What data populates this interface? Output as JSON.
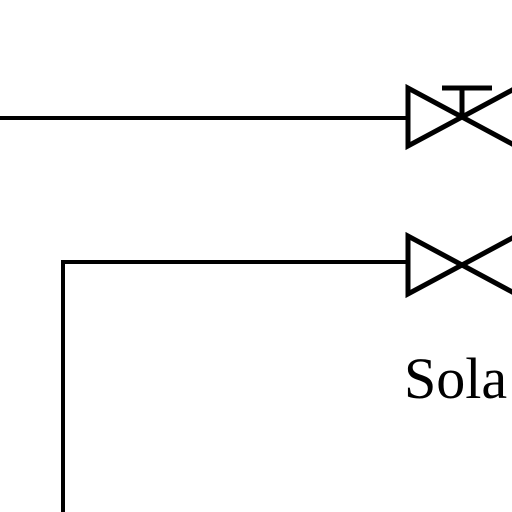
{
  "diagram": {
    "stroke_color": "#000000",
    "background_color": "#ffffff",
    "labels": {
      "solar": "Sola"
    },
    "symbols": [
      {
        "type": "valve-with-stem",
        "icon": "gate-valve-icon"
      },
      {
        "type": "valve",
        "icon": "valve-icon"
      }
    ]
  }
}
